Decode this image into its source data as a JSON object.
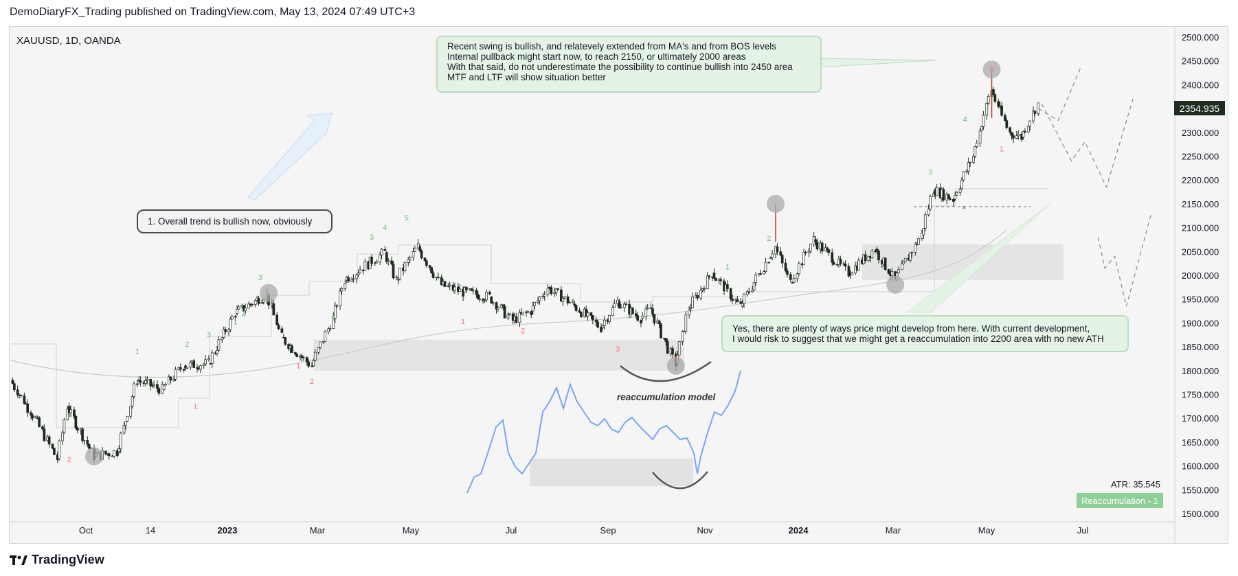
{
  "header": {
    "publisher_line": "DemoDiaryFX_Trading published on TradingView.com, May 13, 2024 07:49 UTC+3"
  },
  "symbol": "XAUUSD, 1D, OANDA",
  "footer": {
    "brand": "TradingView",
    "logo_icon": "tradingview-logo-icon"
  },
  "notes": {
    "top": [
      "Recent swing is bullish, and relatevely extended from MA's and from BOS levels",
      "Internal pullback might start now, to reach 2150, or ultimately 2000 areas",
      "With that said, do not underestimate the possibility to continue bullish into 2450 area",
      "MTF and LTF will show situation better"
    ],
    "trend": "1. Overall trend is bullish now, obviously",
    "bottom": [
      "Yes, there are plenty of ways price might develop from here. With current development,",
      "I would risk to suggest that we might get a reaccumulation into 2200 area with no new ATH"
    ],
    "model_label": "reaccumulation model"
  },
  "indicators": {
    "atr": "ATR: 35.545",
    "badge": "Reaccumulation - 1",
    "last_price": "2354.935"
  },
  "colors": {
    "up": "#1e3a24",
    "down": "#1e2b1e",
    "green_text": "#6bbf79",
    "red_text": "#ef7777",
    "model_line": "#7aa5f5",
    "zone": "#e0e0e0"
  },
  "chart_data": {
    "type": "candlestick",
    "symbol": "XAUUSD",
    "timeframe": "1D",
    "x_ticks": [
      "Oct",
      "14",
      "2023",
      "Mar",
      "May",
      "Jul",
      "Sep",
      "Nov",
      "2024",
      "Mar",
      "May",
      "Jul"
    ],
    "y_ticks": [
      1500,
      1550,
      1600,
      1650,
      1700,
      1750,
      1800,
      1850,
      1900,
      1950,
      2000,
      2050,
      2100,
      2150,
      2200,
      2250,
      2300,
      2350,
      2400,
      2450,
      2500
    ],
    "ylim": [
      1500,
      2510
    ],
    "price_path": [
      [
        "2022-08-31",
        1780
      ],
      [
        "2022-09-15",
        1700
      ],
      [
        "2022-09-28",
        1615
      ],
      [
        "2022-10-04",
        1725
      ],
      [
        "2022-10-20",
        1620
      ],
      [
        "2022-11-03",
        1630
      ],
      [
        "2022-11-15",
        1780
      ],
      [
        "2022-11-30",
        1760
      ],
      [
        "2022-12-13",
        1810
      ],
      [
        "2022-12-28",
        1815
      ],
      [
        "2023-01-13",
        1920
      ],
      [
        "2023-02-01",
        1960
      ],
      [
        "2023-02-10",
        1870
      ],
      [
        "2023-02-28",
        1810
      ],
      [
        "2023-03-13",
        1910
      ],
      [
        "2023-03-20",
        1990
      ],
      [
        "2023-04-13",
        2048
      ],
      [
        "2023-04-20",
        1990
      ],
      [
        "2023-05-03",
        2060
      ],
      [
        "2023-05-17",
        1980
      ],
      [
        "2023-05-30",
        1965
      ],
      [
        "2023-06-15",
        1955
      ],
      [
        "2023-06-29",
        1905
      ],
      [
        "2023-07-10",
        1925
      ],
      [
        "2023-07-20",
        1975
      ],
      [
        "2023-08-04",
        1940
      ],
      [
        "2023-08-21",
        1890
      ],
      [
        "2023-08-31",
        1945
      ],
      [
        "2023-09-14",
        1910
      ],
      [
        "2023-09-20",
        1930
      ],
      [
        "2023-10-05",
        1815
      ],
      [
        "2023-10-13",
        1930
      ],
      [
        "2023-10-27",
        2005
      ],
      [
        "2023-11-13",
        1935
      ],
      [
        "2023-11-30",
        2035
      ],
      [
        "2023-12-04",
        2060
      ],
      [
        "2023-12-13",
        1985
      ],
      [
        "2023-12-27",
        2075
      ],
      [
        "2024-01-17",
        2005
      ],
      [
        "2024-02-02",
        2055
      ],
      [
        "2024-02-14",
        1990
      ],
      [
        "2024-03-01",
        2085
      ],
      [
        "2024-03-08",
        2180
      ],
      [
        "2024-03-20",
        2160
      ],
      [
        "2024-04-01",
        2250
      ],
      [
        "2024-04-12",
        2390
      ],
      [
        "2024-04-23",
        2300
      ],
      [
        "2024-04-30",
        2290
      ],
      [
        "2024-05-10",
        2360
      ]
    ],
    "highlighted_points": [
      [
        "2022-10-20",
        1620
      ],
      [
        "2023-02-02",
        1963
      ],
      [
        "2023-10-05",
        1810
      ],
      [
        "2023-12-04",
        2150
      ],
      [
        "2024-02-14",
        1980
      ],
      [
        "2024-04-12",
        2432
      ]
    ],
    "zones": [
      {
        "from": "2023-03-01",
        "to": "2023-10-10",
        "low": 1800,
        "high": 1865
      },
      {
        "from": "2024-01-25",
        "to": "2024-05-25",
        "low": 1990,
        "high": 2065
      }
    ],
    "wave_labels": [
      {
        "text": "2",
        "date": "2022-10-05",
        "price": 1608,
        "color": "red"
      },
      {
        "text": "1",
        "date": "2022-11-15",
        "price": 1835,
        "color": "green"
      },
      {
        "text": "1",
        "date": "2022-12-20",
        "price": 1720,
        "color": "red"
      },
      {
        "text": "2",
        "date": "2022-12-15",
        "price": 1850,
        "color": "green"
      },
      {
        "text": "3",
        "date": "2022-12-28",
        "price": 1870,
        "color": "green"
      },
      {
        "text": "1",
        "date": "2023-01-13",
        "price": 1897,
        "color": "green"
      },
      {
        "text": "2",
        "date": "2023-01-18",
        "price": 1915,
        "color": "green"
      },
      {
        "text": "3",
        "date": "2023-01-28",
        "price": 1990,
        "color": "green"
      },
      {
        "text": "1",
        "date": "2023-02-20",
        "price": 1805,
        "color": "red"
      },
      {
        "text": "2",
        "date": "2023-02-28",
        "price": 1772,
        "color": "red"
      },
      {
        "text": "1",
        "date": "2023-03-13",
        "price": 1905,
        "color": "green"
      },
      {
        "text": "3",
        "date": "2023-04-05",
        "price": 2075,
        "color": "green"
      },
      {
        "text": "4",
        "date": "2023-04-13",
        "price": 2095,
        "color": "green"
      },
      {
        "text": "5",
        "date": "2023-04-26",
        "price": 2115,
        "color": "green"
      },
      {
        "text": "1",
        "date": "2023-05-30",
        "price": 1898,
        "color": "red"
      },
      {
        "text": "2",
        "date": "2023-07-05",
        "price": 1878,
        "color": "red"
      },
      {
        "text": "3",
        "date": "2023-08-31",
        "price": 1840,
        "color": "red"
      },
      {
        "text": "4",
        "date": "2023-10-05",
        "price": 1820,
        "color": "red"
      },
      {
        "text": "1",
        "date": "2023-11-05",
        "price": 2012,
        "color": "green"
      },
      {
        "text": "2",
        "date": "2023-11-30",
        "price": 2072,
        "color": "green"
      },
      {
        "text": "3",
        "date": "2024-03-06",
        "price": 2212,
        "color": "green"
      },
      {
        "text": "4",
        "date": "2024-03-27",
        "price": 2322,
        "color": "green"
      },
      {
        "text": "5",
        "date": "2024-04-12",
        "price": 2427,
        "color": "red"
      },
      {
        "text": "1",
        "date": "2024-04-18",
        "price": 2260,
        "color": "red"
      }
    ],
    "projection_paths": [
      [
        [
          "2024-05-10",
          2350
        ],
        [
          "2024-05-22",
          2325
        ],
        [
          "2024-06-05",
          2440
        ]
      ],
      [
        [
          "2024-05-12",
          2360
        ],
        [
          "2024-05-30",
          2240
        ],
        [
          "2024-06-07",
          2280
        ],
        [
          "2024-06-20",
          2185
        ],
        [
          "2024-07-06",
          2370
        ]
      ],
      [
        [
          "2024-06-15",
          2080
        ],
        [
          "2024-06-19",
          2015
        ],
        [
          "2024-06-25",
          2040
        ],
        [
          "2024-07-02",
          1935
        ],
        [
          "2024-07-17",
          2130
        ]
      ]
    ]
  }
}
